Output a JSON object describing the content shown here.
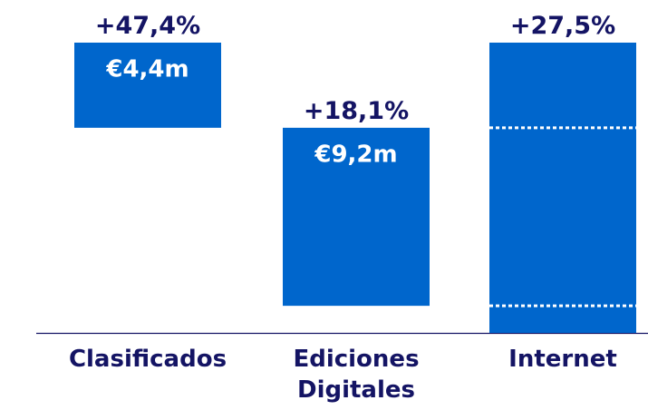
{
  "chart_data": {
    "type": "waterfall",
    "categories": [
      "Clasificados",
      "Ediciones Digitales",
      "Internet"
    ],
    "values": [
      4.4,
      9.2,
      15.0
    ],
    "value_labels": [
      "€4,4m",
      "€9,2m",
      null
    ],
    "total_index": 2,
    "growth": [
      47.4,
      18.1,
      27.5
    ],
    "growth_labels": [
      "+47,4%",
      "+18,1%",
      "+27,5%"
    ],
    "ylim": [
      0,
      15
    ],
    "color": "#0066cc"
  }
}
